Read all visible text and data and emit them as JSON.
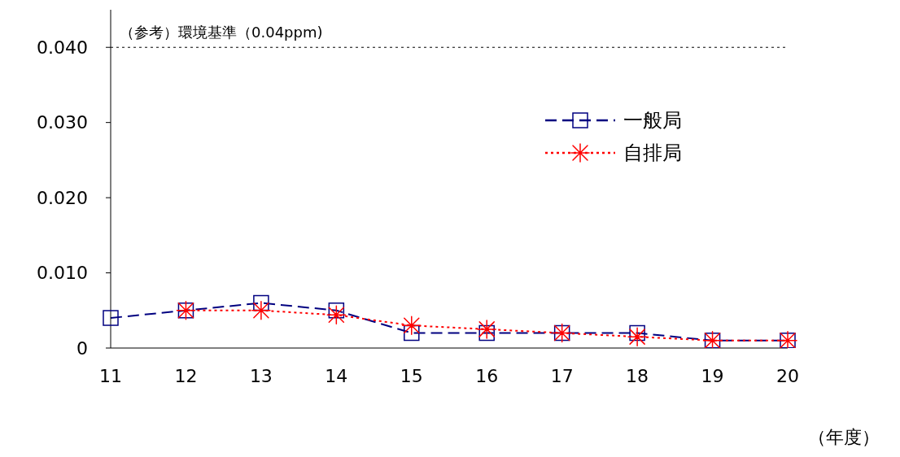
{
  "chart_data": {
    "type": "line",
    "xlabel": "（年度）",
    "categories": [
      "11",
      "12",
      "13",
      "14",
      "15",
      "16",
      "17",
      "18",
      "19",
      "20"
    ],
    "series": [
      {
        "name": "一般局",
        "color": "#000080",
        "line_style": "dashed",
        "marker": "square",
        "values": [
          0.004,
          0.005,
          0.006,
          0.005,
          0.002,
          0.002,
          0.002,
          0.002,
          0.001,
          0.001
        ]
      },
      {
        "name": "自排局",
        "color": "#ff0000",
        "line_style": "dotted",
        "marker": "cross",
        "values": [
          null,
          0.005,
          0.005,
          0.0044,
          0.003,
          0.0025,
          0.002,
          0.0015,
          0.001,
          0.001
        ]
      }
    ],
    "ylim": [
      0,
      0.045
    ],
    "yticks": [
      0,
      {
        "value": 0.01,
        "label": "0.010"
      },
      {
        "value": 0.02,
        "label": "0.020"
      },
      {
        "value": 0.03,
        "label": "0.030"
      },
      {
        "value": 0.04,
        "label": "0.040"
      }
    ],
    "ref_lines": [
      {
        "axis": "y",
        "value": 0.04,
        "label": "（参考）環境基準（0.04ppm)",
        "line_style": "dotted",
        "color": "#000000"
      }
    ],
    "grid": false,
    "legend": "top right"
  }
}
